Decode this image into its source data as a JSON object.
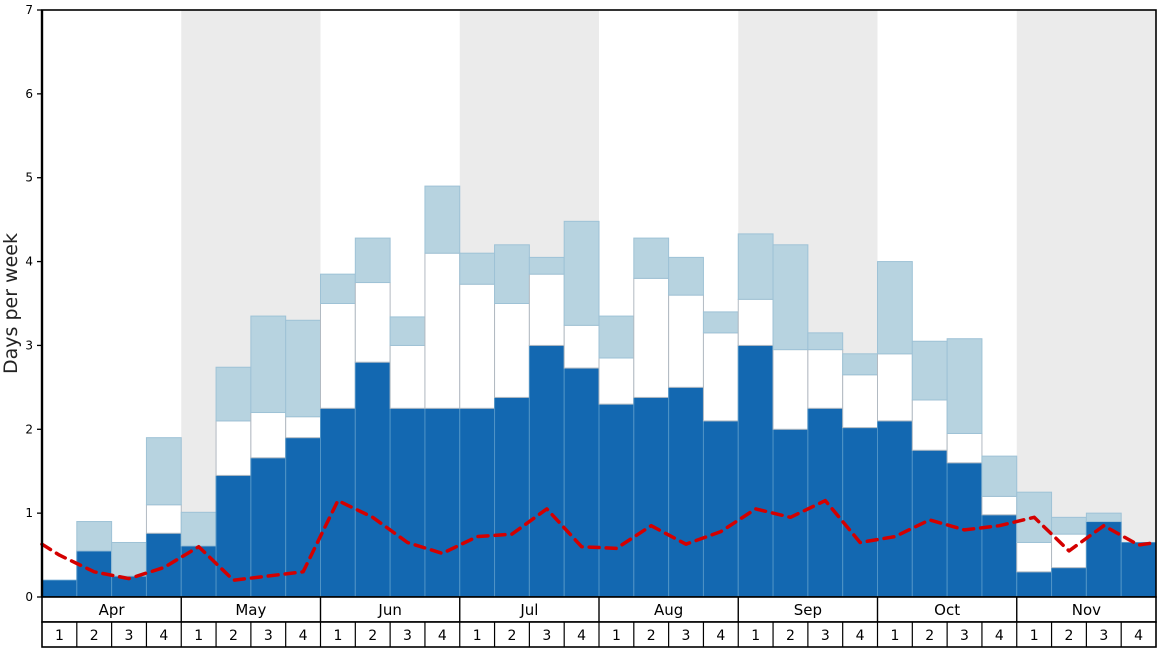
{
  "chart_data": {
    "type": "bar",
    "subtype": "stacked-bars-with-dashed-line",
    "title": "",
    "ylabel": "Days per week",
    "xlabel": "",
    "ylim": [
      0,
      7
    ],
    "yticks": [
      0,
      1,
      2,
      3,
      4,
      5,
      6,
      7
    ],
    "grid": false,
    "legend": "none",
    "months": [
      "Apr",
      "May",
      "Jun",
      "Jul",
      "Aug",
      "Sep",
      "Oct",
      "Nov"
    ],
    "week_labels": [
      "1",
      "2",
      "3",
      "4"
    ],
    "shaded_months": [
      "May",
      "Jul",
      "Sep",
      "Nov"
    ],
    "band_color": "#ebebeb",
    "frame_color": "#000000",
    "series": [
      {
        "name": "dark-blue",
        "color": "#1368b1",
        "stroke": "#4f93c6",
        "values": [
          0.2,
          0.55,
          0.25,
          0.76,
          0.61,
          1.45,
          1.66,
          1.9,
          2.25,
          2.8,
          2.25,
          2.25,
          2.25,
          2.38,
          3.0,
          2.73,
          2.3,
          2.38,
          2.5,
          2.1,
          3.0,
          2.0,
          2.25,
          2.02,
          2.1,
          1.75,
          1.6,
          0.98,
          0.3,
          0.35,
          0.9,
          0.65
        ]
      },
      {
        "name": "white",
        "color": "#ffffff",
        "stroke": "#b2bac2",
        "values": [
          0,
          0,
          0,
          0.34,
          0,
          0.65,
          0.54,
          0.25,
          1.25,
          0.95,
          0.75,
          1.85,
          1.48,
          1.12,
          0.85,
          0.51,
          0.55,
          1.42,
          1.1,
          1.05,
          0.55,
          0.95,
          0.7,
          0.63,
          0.8,
          0.6,
          0.35,
          0.22,
          0.35,
          0.4,
          0,
          0
        ]
      },
      {
        "name": "light-blue",
        "color": "#b7d3e0",
        "stroke": "#9ec2d6",
        "values": [
          0,
          0.35,
          0.4,
          0.8,
          0.4,
          0.64,
          1.15,
          1.15,
          0.35,
          0.53,
          0.34,
          0.8,
          0.37,
          0.7,
          0.2,
          1.24,
          0.5,
          0.48,
          0.45,
          0.25,
          0.78,
          1.25,
          0.2,
          0.25,
          1.1,
          0.7,
          1.13,
          0.48,
          0.6,
          0.2,
          0.1,
          0
        ]
      }
    ],
    "line": {
      "name": "red-dashed",
      "color": "#d40000",
      "style": "dashed",
      "values_include_edges": true,
      "values": [
        0.63,
        0.5,
        0.3,
        0.22,
        0.35,
        0.6,
        0.2,
        0.25,
        0.3,
        1.15,
        0.95,
        0.65,
        0.52,
        0.72,
        0.75,
        1.05,
        0.6,
        0.58,
        0.85,
        0.63,
        0.78,
        1.05,
        0.95,
        1.15,
        0.65,
        0.72,
        0.92,
        0.8,
        0.85,
        0.95,
        0.55,
        0.85,
        0.62,
        0.65
      ]
    }
  }
}
